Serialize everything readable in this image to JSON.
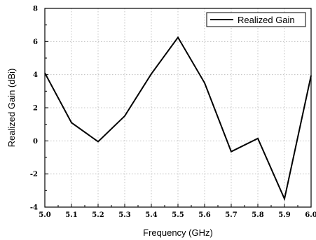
{
  "chart_data": {
    "type": "line",
    "xlabel": "Frequency (GHz)",
    "ylabel": "Realized Gain (dBi)",
    "xlim": [
      5.0,
      6.0
    ],
    "ylim": [
      -4,
      8
    ],
    "x_ticks": [
      "5.0",
      "5.1",
      "5.2",
      "5.3",
      "5.4",
      "5.5",
      "5.6",
      "5.7",
      "5.8",
      "5.9",
      "6.0"
    ],
    "y_ticks": [
      "-4",
      "-2",
      "0",
      "2",
      "4",
      "6",
      "8"
    ],
    "grid": true,
    "legend_position": "top-right",
    "series": [
      {
        "name": "Realized Gain",
        "color": "#000000",
        "x": [
          5.0,
          5.1,
          5.2,
          5.3,
          5.4,
          5.5,
          5.6,
          5.7,
          5.8,
          5.9,
          6.0
        ],
        "y": [
          4.1,
          1.1,
          -0.05,
          1.5,
          4.05,
          6.25,
          3.5,
          -0.65,
          0.15,
          -3.5,
          3.95
        ]
      }
    ]
  }
}
